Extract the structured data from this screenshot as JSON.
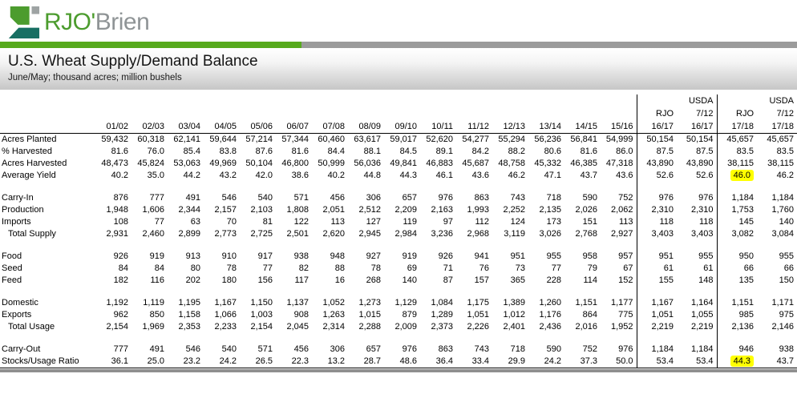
{
  "logo": {
    "text_green": "RJO'",
    "text_gray": "Brien"
  },
  "header": {
    "title": "U.S. Wheat Supply/Demand Balance",
    "subtitle": "June/May; thousand acres; million bushels"
  },
  "colors": {
    "brand_green": "#4c9c2e",
    "bar_green": "#57aa1e",
    "bar_gray": "#9b9b9b",
    "logo_teal": "#186f63",
    "logo_gray": "#9ea3a3",
    "highlight_yellow": "#ffff00"
  },
  "table": {
    "group_border_columns": [
      15,
      17
    ],
    "header_rows": [
      {
        "cells": [
          "",
          "",
          "",
          "",
          "",
          "",
          "",
          "",
          "",
          "",
          "",
          "",
          "",
          "",
          "",
          "",
          "USDA",
          "",
          "USDA"
        ]
      },
      {
        "cells": [
          "",
          "",
          "",
          "",
          "",
          "",
          "",
          "",
          "",
          "",
          "",
          "",
          "",
          "",
          "",
          "RJO",
          "7/12",
          "RJO",
          "7/12"
        ]
      },
      {
        "cells": [
          "01/02",
          "02/03",
          "03/04",
          "04/05",
          "05/06",
          "06/07",
          "07/08",
          "08/09",
          "09/10",
          "10/11",
          "11/12",
          "12/13",
          "13/14",
          "14/15",
          "15/16",
          "16/17",
          "16/17",
          "17/18",
          "17/18"
        ]
      }
    ],
    "rows": [
      {
        "type": "data",
        "label": "Acres Planted",
        "values": [
          "59,432",
          "60,318",
          "62,141",
          "59,644",
          "57,214",
          "57,344",
          "60,460",
          "63,617",
          "59,017",
          "52,620",
          "54,277",
          "55,294",
          "56,236",
          "56,841",
          "54,999",
          "50,154",
          "50,154",
          "45,657",
          "45,657"
        ]
      },
      {
        "type": "data",
        "label": "% Harvested",
        "values": [
          "81.6",
          "76.0",
          "85.4",
          "83.8",
          "87.6",
          "81.6",
          "84.4",
          "88.1",
          "84.5",
          "89.1",
          "84.2",
          "88.2",
          "80.6",
          "81.6",
          "86.0",
          "87.5",
          "87.5",
          "83.5",
          "83.5"
        ]
      },
      {
        "type": "data",
        "label": "Acres Harvested",
        "values": [
          "48,473",
          "45,824",
          "53,063",
          "49,969",
          "50,104",
          "46,800",
          "50,999",
          "56,036",
          "49,841",
          "46,883",
          "45,687",
          "48,758",
          "45,332",
          "46,385",
          "47,318",
          "43,890",
          "43,890",
          "38,115",
          "38,115"
        ]
      },
      {
        "type": "data",
        "label": "Average Yield",
        "values": [
          "40.2",
          "35.0",
          "44.2",
          "43.2",
          "42.0",
          "38.6",
          "40.2",
          "44.8",
          "44.3",
          "46.1",
          "43.6",
          "46.2",
          "47.1",
          "43.7",
          "43.6",
          "52.6",
          "52.6",
          "46.0",
          "46.2"
        ],
        "highlight": [
          17
        ]
      },
      {
        "type": "spacer"
      },
      {
        "type": "data",
        "label": "Carry-In",
        "values": [
          "876",
          "777",
          "491",
          "546",
          "540",
          "571",
          "456",
          "306",
          "657",
          "976",
          "863",
          "743",
          "718",
          "590",
          "752",
          "976",
          "976",
          "1,184",
          "1,184"
        ]
      },
      {
        "type": "data",
        "label": "Production",
        "values": [
          "1,948",
          "1,606",
          "2,344",
          "2,157",
          "2,103",
          "1,808",
          "2,051",
          "2,512",
          "2,209",
          "2,163",
          "1,993",
          "2,252",
          "2,135",
          "2,026",
          "2,062",
          "2,310",
          "2,310",
          "1,753",
          "1,760"
        ]
      },
      {
        "type": "data",
        "label": "Imports",
        "values": [
          "108",
          "77",
          "63",
          "70",
          "81",
          "122",
          "113",
          "127",
          "119",
          "97",
          "112",
          "124",
          "173",
          "151",
          "113",
          "118",
          "118",
          "145",
          "140"
        ]
      },
      {
        "type": "data",
        "label": "Total Supply",
        "indent": true,
        "values": [
          "2,931",
          "2,460",
          "2,899",
          "2,773",
          "2,725",
          "2,501",
          "2,620",
          "2,945",
          "2,984",
          "3,236",
          "2,968",
          "3,119",
          "3,026",
          "2,768",
          "2,927",
          "3,403",
          "3,403",
          "3,082",
          "3,084"
        ]
      },
      {
        "type": "spacer"
      },
      {
        "type": "data",
        "label": "Food",
        "values": [
          "926",
          "919",
          "913",
          "910",
          "917",
          "938",
          "948",
          "927",
          "919",
          "926",
          "941",
          "951",
          "955",
          "958",
          "957",
          "951",
          "955",
          "950",
          "955"
        ]
      },
      {
        "type": "data",
        "label": "Seed",
        "values": [
          "84",
          "84",
          "80",
          "78",
          "77",
          "82",
          "88",
          "78",
          "69",
          "71",
          "76",
          "73",
          "77",
          "79",
          "67",
          "61",
          "61",
          "66",
          "66"
        ]
      },
      {
        "type": "data",
        "label": "Feed",
        "values": [
          "182",
          "116",
          "202",
          "180",
          "156",
          "117",
          "16",
          "268",
          "140",
          "87",
          "157",
          "365",
          "228",
          "114",
          "152",
          "155",
          "148",
          "135",
          "150"
        ]
      },
      {
        "type": "spacer"
      },
      {
        "type": "data",
        "label": "Domestic",
        "values": [
          "1,192",
          "1,119",
          "1,195",
          "1,167",
          "1,150",
          "1,137",
          "1,052",
          "1,273",
          "1,129",
          "1,084",
          "1,175",
          "1,389",
          "1,260",
          "1,151",
          "1,177",
          "1,167",
          "1,164",
          "1,151",
          "1,171"
        ]
      },
      {
        "type": "data",
        "label": "Exports",
        "values": [
          "962",
          "850",
          "1,158",
          "1,066",
          "1,003",
          "908",
          "1,263",
          "1,015",
          "879",
          "1,289",
          "1,051",
          "1,012",
          "1,176",
          "864",
          "775",
          "1,051",
          "1,055",
          "985",
          "975"
        ]
      },
      {
        "type": "data",
        "label": "Total Usage",
        "indent": true,
        "values": [
          "2,154",
          "1,969",
          "2,353",
          "2,233",
          "2,154",
          "2,045",
          "2,314",
          "2,288",
          "2,009",
          "2,373",
          "2,226",
          "2,401",
          "2,436",
          "2,016",
          "1,952",
          "2,219",
          "2,219",
          "2,136",
          "2,146"
        ]
      },
      {
        "type": "spacer"
      },
      {
        "type": "data",
        "label": "Carry-Out",
        "values": [
          "777",
          "491",
          "546",
          "540",
          "571",
          "456",
          "306",
          "657",
          "976",
          "863",
          "743",
          "718",
          "590",
          "752",
          "976",
          "1,184",
          "1,184",
          "946",
          "938"
        ]
      },
      {
        "type": "data",
        "label": "Stocks/Usage Ratio",
        "values": [
          "36.1",
          "25.0",
          "23.2",
          "24.2",
          "26.5",
          "22.3",
          "13.2",
          "28.7",
          "48.6",
          "36.4",
          "33.4",
          "29.9",
          "24.2",
          "37.3",
          "50.0",
          "53.4",
          "53.4",
          "44.3",
          "43.7"
        ],
        "highlight": [
          17
        ]
      }
    ]
  }
}
